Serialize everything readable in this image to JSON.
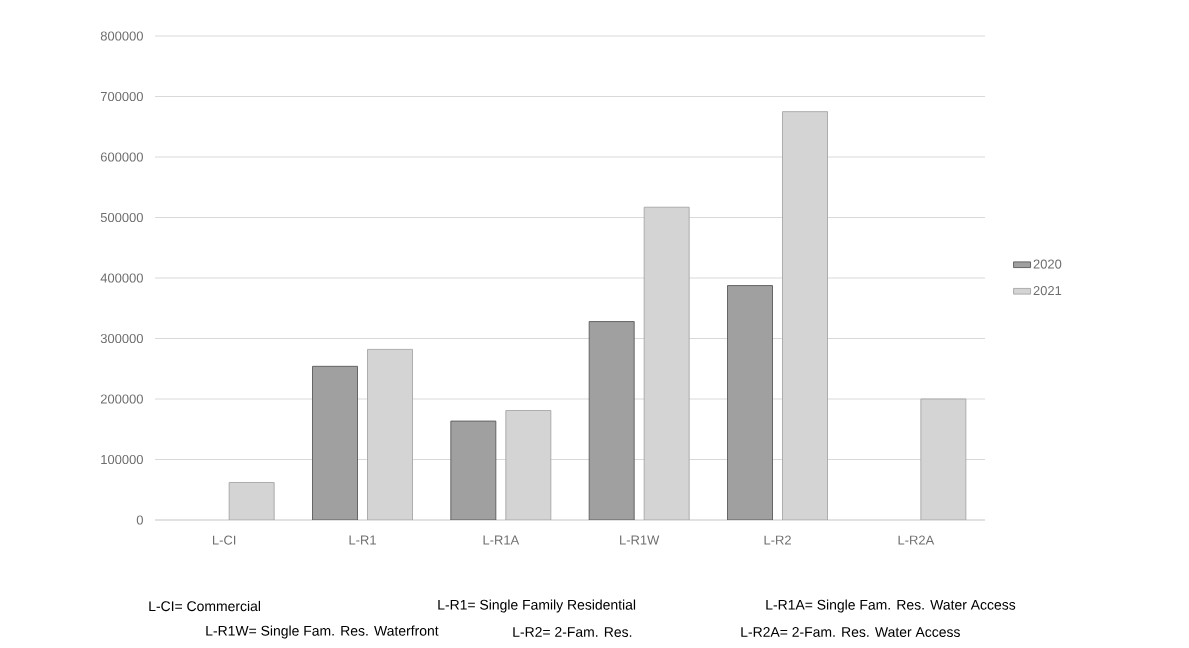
{
  "chart_data": {
    "type": "bar",
    "categories": [
      "L-CI",
      "L-R1",
      "L-R1A",
      "L-R1W",
      "L-R2",
      "L-R2A"
    ],
    "series": [
      {
        "name": "2020",
        "color": "#a0a0a0",
        "values": [
          null,
          254000,
          163500,
          328000,
          387500,
          null
        ]
      },
      {
        "name": "2021",
        "color": "#d4d4d4",
        "values": [
          62000,
          282000,
          181000,
          517000,
          675000,
          200000
        ]
      }
    ],
    "ylim": [
      0,
      800000
    ],
    "yticks": [
      0,
      100000,
      200000,
      300000,
      400000,
      500000,
      600000,
      700000,
      800000
    ],
    "grid": "y",
    "legend": "right",
    "annotations": [
      "L-CI= Commercial",
      "L-R1= Single Family Residential",
      "L-R1A= Single Fam. Res. Water Access",
      "L-R1W= Single Fam. Res. Waterfront",
      "L-R2= 2-Fam. Res.",
      "L-R2A= 2-Fam. Res. Water Access"
    ]
  }
}
